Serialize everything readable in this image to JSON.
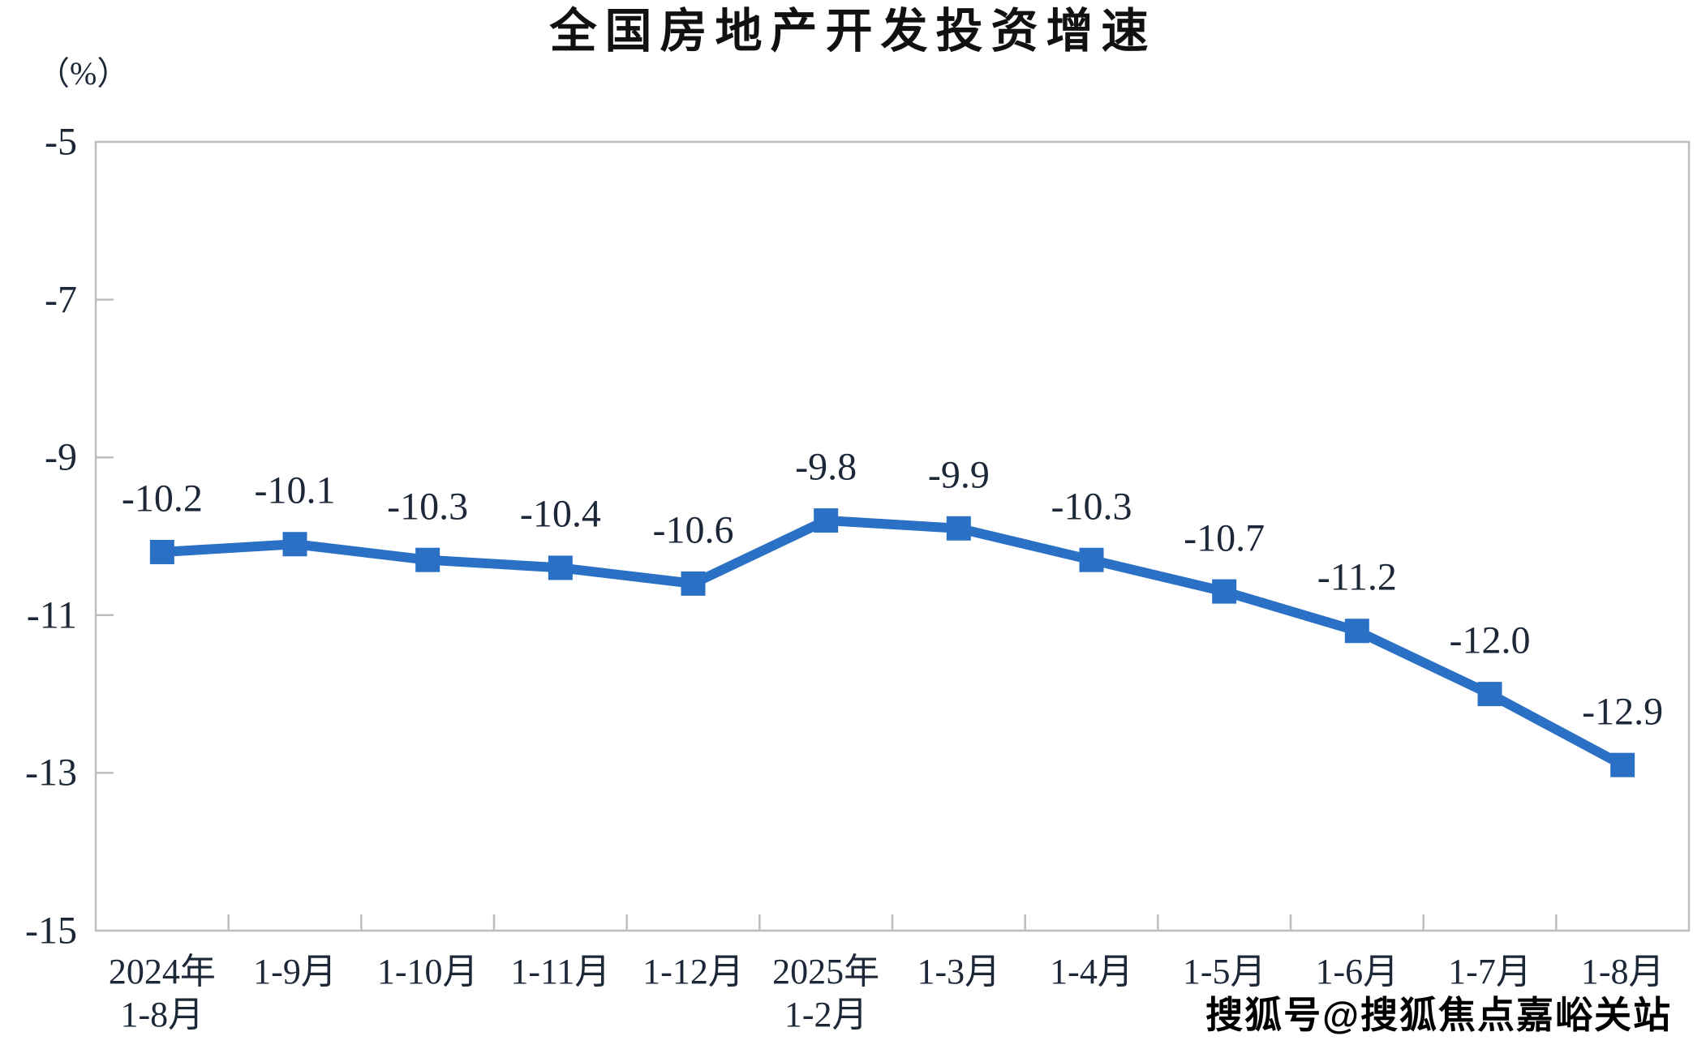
{
  "chart_data": {
    "type": "line",
    "title": "全国房地产开发投资增速",
    "ylabel": "（%）",
    "xlabel": "",
    "categories": [
      "2024年\n1-8月",
      "1-9月",
      "1-10月",
      "1-11月",
      "1-12月",
      "2025年\n1-2月",
      "1-3月",
      "1-4月",
      "1-5月",
      "1-6月",
      "1-7月",
      "1-8月"
    ],
    "series": [
      {
        "name": "全国房地产开发投资增速",
        "values": [
          -10.2,
          -10.1,
          -10.3,
          -10.4,
          -10.6,
          -9.8,
          -9.9,
          -10.3,
          -10.7,
          -11.2,
          -12.0,
          -12.9
        ]
      }
    ],
    "data_labels": [
      "-10.2",
      "-10.1",
      "-10.3",
      "-10.4",
      "-10.6",
      "-9.8",
      "-9.9",
      "-10.3",
      "-10.7",
      "-11.2",
      "-12.0",
      "-12.9"
    ],
    "ylim": [
      -15,
      -5
    ],
    "yticks": [
      -5,
      -7,
      -9,
      -11,
      -13,
      -15
    ],
    "ytick_labels": [
      "-5",
      "-7",
      "-9",
      "-11",
      "-13",
      "-15"
    ],
    "grid": false,
    "legend": "none",
    "marker": "square",
    "colors": {
      "line": "#2a71c6",
      "marker": "#2a71c6",
      "label": "#1c2738",
      "axis": "#bdbdbd",
      "title": "#111111"
    }
  },
  "watermark": {
    "text": "搜狐号@搜狐焦点嘉峪关站"
  }
}
